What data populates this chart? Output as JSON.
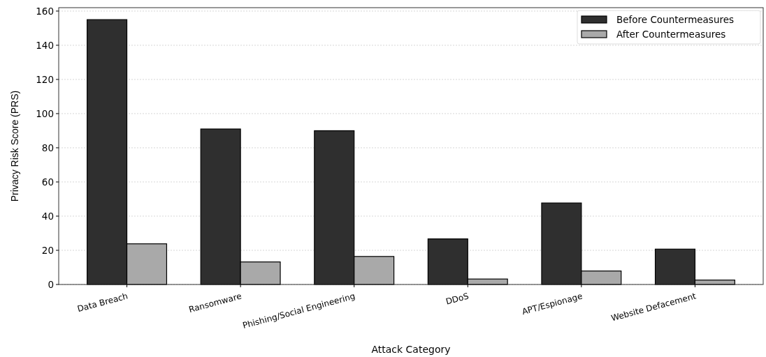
{
  "chart_data": {
    "type": "bar",
    "xlabel": "Attack Category",
    "ylabel": "Privacy Risk Score (PRS)",
    "categories": [
      "Data Breach",
      "Ransomware",
      "Phishing/Social Engineering",
      "DDoS",
      "APT/Espionage",
      "Website Defacement"
    ],
    "series": [
      {
        "name": "Before Countermeasures",
        "color": "#2f2f2f",
        "values": [
          155,
          91,
          90,
          26.7,
          47.7,
          20.7
        ]
      },
      {
        "name": "After Countermeasures",
        "color": "#a9a9a9",
        "values": [
          23.8,
          13.2,
          16.4,
          3.2,
          7.9,
          2.6
        ]
      }
    ],
    "ylim": [
      0,
      162
    ],
    "yticks": [
      0,
      20,
      40,
      60,
      80,
      100,
      120,
      140,
      160
    ],
    "grid": "y",
    "legend": "top right"
  }
}
